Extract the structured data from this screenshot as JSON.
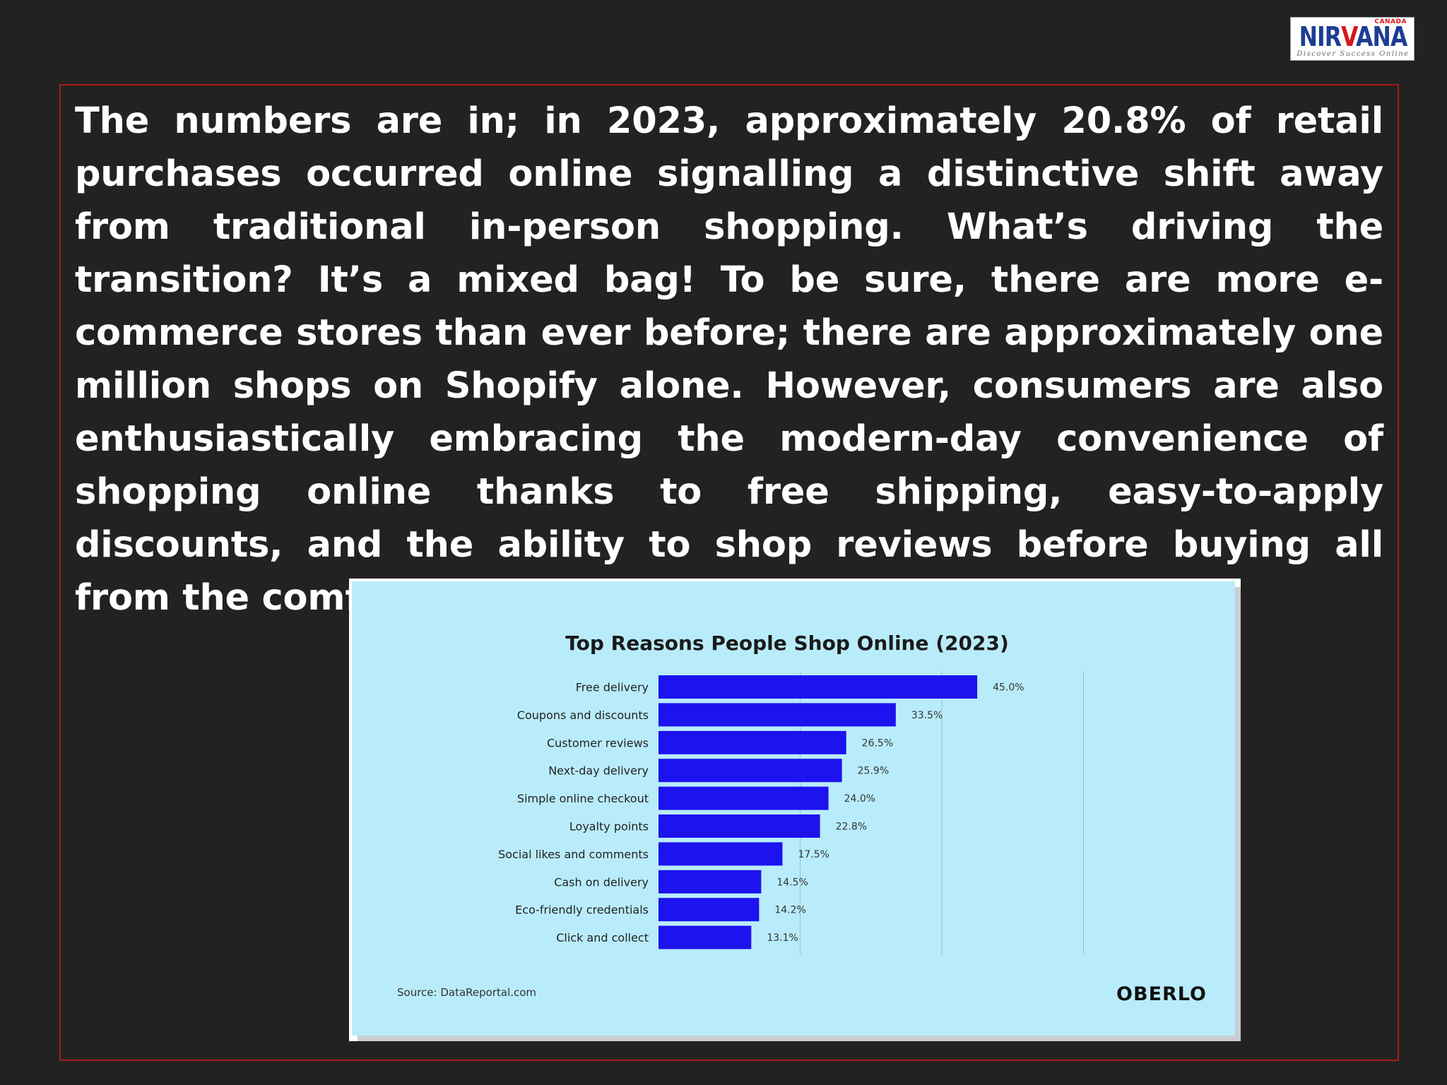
{
  "logo": {
    "country": "CANADA",
    "word_start": "NIR",
    "word_accent": "V",
    "word_end": "ANA",
    "tagline": "Discover Success Online"
  },
  "paragraph": "The numbers are in; in 2023, approximately 20.8% of retail purchases occurred online signalling a distinctive shift away from traditional in-person shopping. What’s driving the transition? It’s a mixed bag! To be sure, there are more e-commerce stores than ever before; there are approximately one million shops on Shopify alone. However, consumers are also enthusiastically embracing the modern-day convenience of shopping online thanks to free shipping, easy-to-apply discounts, and the ability to shop reviews before buying all from the comfort of anywhere.",
  "colors": {
    "bar": "#1c13ee",
    "chart_bg": "#b9ecfb",
    "frame": "#a61b1b",
    "page_bg": "#222222"
  },
  "chart_data": {
    "type": "bar",
    "orientation": "horizontal",
    "title": "Top Reasons People Shop Online (2023)",
    "categories": [
      "Free delivery",
      "Coupons and discounts",
      "Customer reviews",
      "Next-day delivery",
      "Simple online checkout",
      "Loyalty points",
      "Social likes and comments",
      "Cash on delivery",
      "Eco-friendly credentials",
      "Click and collect"
    ],
    "values": [
      45.0,
      33.5,
      26.5,
      25.9,
      24.0,
      22.8,
      17.5,
      14.5,
      14.2,
      13.1
    ],
    "value_labels": [
      "45.0%",
      "33.5%",
      "26.5%",
      "25.9%",
      "24.0%",
      "22.8%",
      "17.5%",
      "14.5%",
      "14.2%",
      "13.1%"
    ],
    "xlim": [
      0,
      80
    ],
    "gridlines": [
      20,
      40,
      60
    ],
    "legend": "none",
    "source": "Source: DataReportal.com",
    "brand": "OBERLO"
  }
}
